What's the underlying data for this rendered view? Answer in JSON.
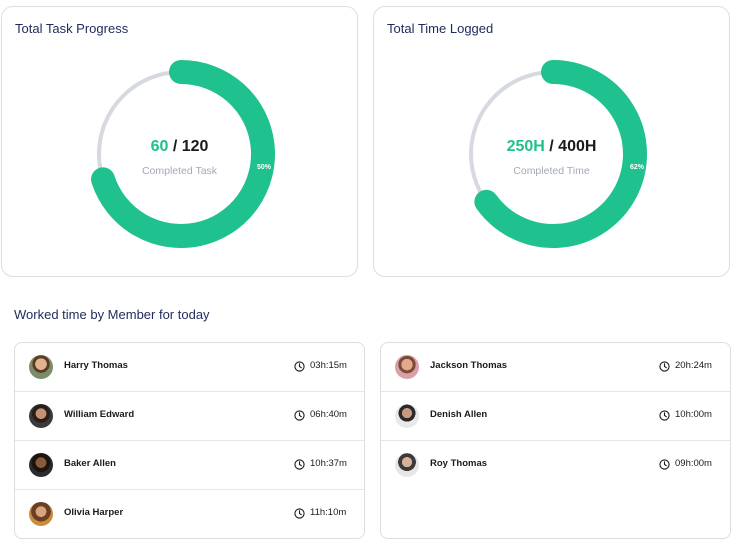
{
  "task_progress": {
    "title": "Total Task Progress",
    "completed": "60",
    "separator": " / ",
    "total": "120",
    "subtitle": "Completed Task",
    "percent_label": "50%",
    "fraction": 0.5
  },
  "time_logged": {
    "title": "Total Time Logged",
    "completed": "250H",
    "separator": " / ",
    "total": "400H",
    "subtitle": "Completed Time",
    "percent_label": "62%",
    "fraction": 0.62
  },
  "colors": {
    "accent": "#1fc18e",
    "track": "#d6d9e0",
    "title": "#1f2a5c"
  },
  "members_section": {
    "title": "Worked time by Member for today",
    "left": [
      {
        "name": "Harry Thomas",
        "time": "03h:15m"
      },
      {
        "name": "William Edward",
        "time": "06h:40m"
      },
      {
        "name": "Baker Allen",
        "time": "10h:37m"
      },
      {
        "name": "Olivia Harper",
        "time": "11h:10m"
      }
    ],
    "right": [
      {
        "name": "Jackson Thomas",
        "time": "20h:24m"
      },
      {
        "name": "Denish Allen",
        "time": "10h:00m"
      },
      {
        "name": "Roy Thomas",
        "time": "09h:00m"
      }
    ]
  },
  "icons": {
    "time": "clock-icon",
    "avatar": "avatar"
  }
}
